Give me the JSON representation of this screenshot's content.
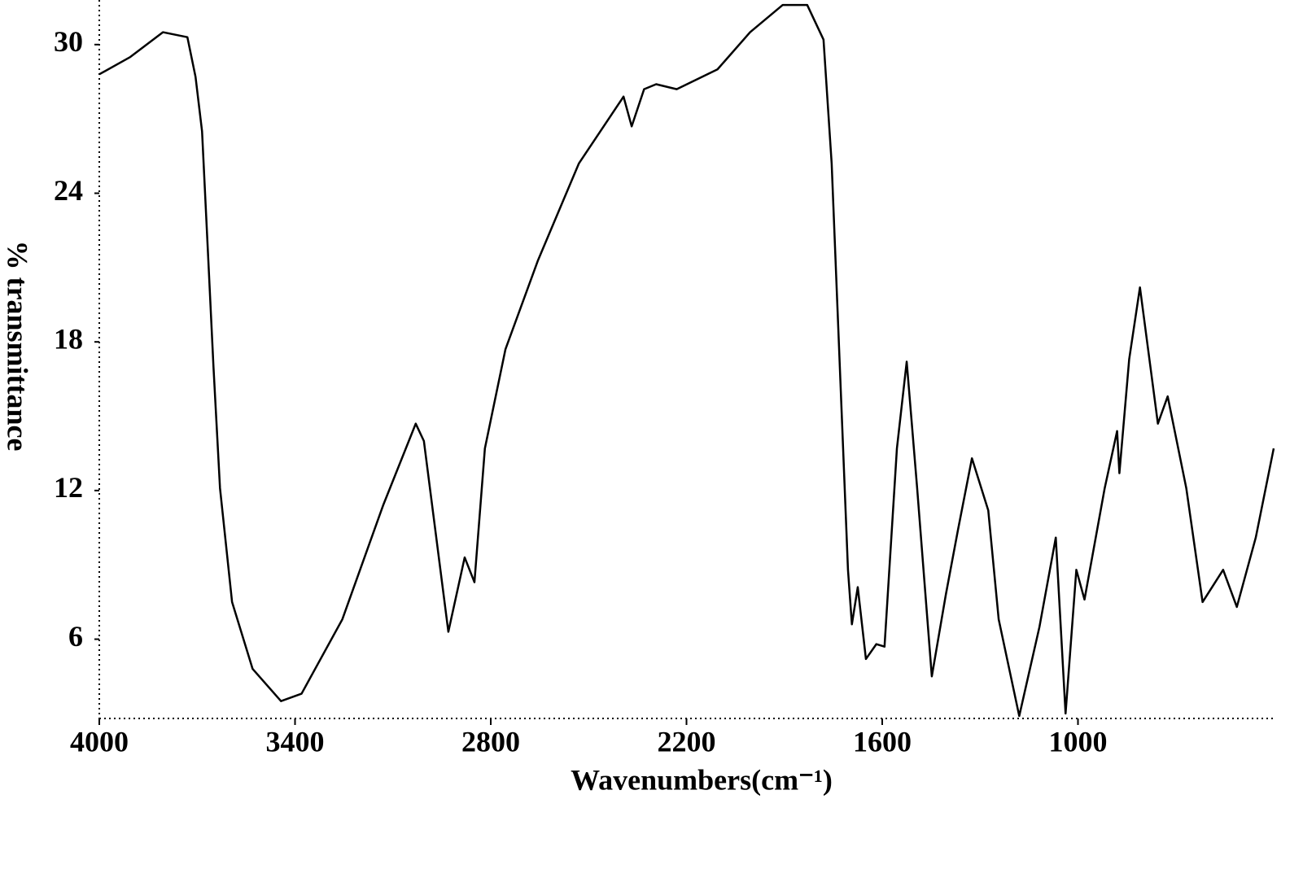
{
  "chart_data": {
    "type": "line",
    "x_label": "Wavenumbers(cm⁻¹)",
    "y_label": "% transmittance",
    "x": [
      4000,
      3905,
      3805,
      3730,
      3705,
      3685,
      3668,
      3650,
      3630,
      3593,
      3530,
      3443,
      3380,
      3255,
      3130,
      3030,
      3005,
      2930,
      2880,
      2850,
      2818,
      2755,
      2655,
      2530,
      2393,
      2368,
      2330,
      2293,
      2230,
      2105,
      2005,
      1905,
      1830,
      1780,
      1755,
      1730,
      1705,
      1693,
      1675,
      1650,
      1618,
      1593,
      1555,
      1525,
      1493,
      1448,
      1405,
      1368,
      1325,
      1275,
      1243,
      1180,
      1118,
      1068,
      1038,
      1005,
      980,
      918,
      880,
      873,
      843,
      810,
      775,
      755,
      725,
      668,
      618,
      555,
      513,
      455,
      400
    ],
    "series": [
      {
        "color": "#000000",
        "values": [
          28.8,
          29.5,
          30.5,
          30.3,
          28.7,
          26.5,
          21.9,
          17.0,
          12.1,
          7.5,
          4.8,
          3.5,
          3.8,
          6.8,
          11.4,
          14.7,
          14.0,
          6.3,
          9.3,
          8.3,
          13.7,
          17.7,
          21.3,
          25.2,
          27.9,
          26.7,
          28.2,
          28.4,
          28.2,
          29.0,
          30.5,
          31.6,
          31.6,
          30.2,
          25.2,
          17.0,
          8.8,
          6.6,
          8.1,
          5.2,
          5.8,
          5.7,
          13.7,
          17.2,
          12.1,
          4.5,
          7.8,
          10.4,
          13.3,
          11.2,
          6.8,
          2.9,
          6.5,
          10.1,
          3.0,
          8.8,
          7.6,
          12.1,
          14.4,
          12.7,
          17.3,
          20.2,
          16.7,
          14.7,
          15.8,
          12.1,
          7.5,
          8.8,
          7.3,
          10.1,
          13.7
        ]
      }
    ],
    "xlim": [
      4000,
      400
    ],
    "xticks": [
      4000,
      3400,
      2800,
      2200,
      1600,
      1000
    ],
    "ylim": [
      2.8,
      31.8
    ],
    "yticks": [
      6,
      12,
      18,
      24,
      30
    ]
  }
}
